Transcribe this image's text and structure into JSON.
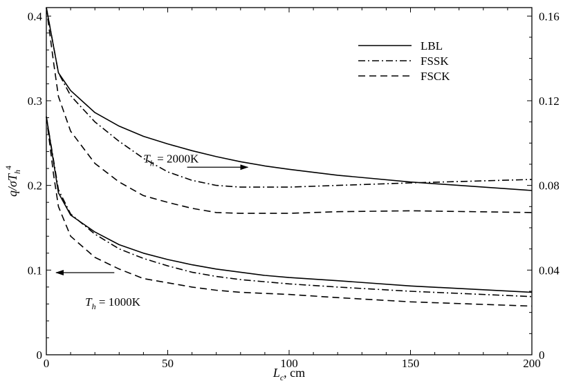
{
  "chart_data": {
    "type": "line",
    "xlabel": {
      "main": "L",
      "sub": "c",
      "unit": ", cm"
    },
    "ylabel_left": {
      "q": "q/σ",
      "T": "T",
      "sub": "h",
      "sup": "4"
    },
    "xlim": [
      0,
      200
    ],
    "ylim_left": [
      0,
      0.41
    ],
    "ylim_right": [
      0,
      0.164
    ],
    "x_ticks": [
      0,
      50,
      100,
      150,
      200
    ],
    "x_tick_labels": [
      "0",
      "50",
      "100",
      "150",
      "200"
    ],
    "y_left_ticks": [
      0,
      0.1,
      0.2,
      0.3,
      0.4
    ],
    "y_left_tick_labels": [
      "0",
      "0.1",
      "0.2",
      "0.3",
      "0.4"
    ],
    "y_right_ticks": [
      0,
      0.04,
      0.08,
      0.12,
      0.16
    ],
    "y_right_tick_labels": [
      "0",
      "0.04",
      "0.08",
      "0.12",
      "0.16"
    ],
    "grid": false,
    "legend_position": "top-right",
    "series": [
      {
        "name": "LBL",
        "style": "solid",
        "axis": "left",
        "group": "T_h = 2000K",
        "x": [
          0,
          5,
          10,
          20,
          30,
          40,
          50,
          60,
          70,
          80,
          90,
          100,
          120,
          150,
          200
        ],
        "values": [
          0.41,
          0.333,
          0.312,
          0.286,
          0.27,
          0.258,
          0.249,
          0.241,
          0.234,
          0.228,
          0.223,
          0.219,
          0.212,
          0.204,
          0.194
        ]
      },
      {
        "name": "FSSK",
        "style": "dashdot",
        "axis": "left",
        "group": "T_h = 2000K",
        "x": [
          0,
          5,
          10,
          20,
          30,
          40,
          50,
          60,
          70,
          80,
          90,
          100,
          120,
          150,
          200
        ],
        "values": [
          0.41,
          0.333,
          0.306,
          0.275,
          0.252,
          0.232,
          0.216,
          0.206,
          0.2,
          0.198,
          0.198,
          0.198,
          0.2,
          0.203,
          0.207
        ]
      },
      {
        "name": "FSCK",
        "style": "dashed",
        "axis": "left",
        "group": "T_h = 2000K",
        "x": [
          0,
          3,
          5,
          10,
          20,
          30,
          40,
          50,
          60,
          70,
          80,
          100,
          120,
          150,
          200
        ],
        "values": [
          0.41,
          0.345,
          0.305,
          0.264,
          0.226,
          0.204,
          0.188,
          0.18,
          0.173,
          0.168,
          0.167,
          0.167,
          0.169,
          0.17,
          0.168
        ]
      },
      {
        "name": "LBL",
        "style": "solid",
        "axis": "right",
        "group": "T_h = 1000K",
        "x": [
          0,
          5,
          10,
          20,
          30,
          40,
          50,
          60,
          70,
          80,
          90,
          100,
          120,
          150,
          200
        ],
        "values": [
          0.1125,
          0.0765,
          0.066,
          0.058,
          0.052,
          0.048,
          0.045,
          0.0425,
          0.0405,
          0.039,
          0.0375,
          0.0365,
          0.035,
          0.0325,
          0.0295
        ]
      },
      {
        "name": "FSSK",
        "style": "dashdot",
        "axis": "right",
        "group": "T_h = 1000K",
        "x": [
          0,
          5,
          10,
          20,
          30,
          40,
          50,
          60,
          70,
          80,
          90,
          100,
          120,
          150,
          200
        ],
        "values": [
          0.1125,
          0.078,
          0.0665,
          0.057,
          0.05,
          0.0455,
          0.042,
          0.039,
          0.037,
          0.0355,
          0.0345,
          0.0335,
          0.032,
          0.03,
          0.0275
        ]
      },
      {
        "name": "FSCK",
        "style": "dashed",
        "axis": "right",
        "group": "T_h = 1000K",
        "x": [
          0,
          3,
          5,
          10,
          20,
          30,
          40,
          50,
          60,
          70,
          80,
          90,
          100,
          120,
          150,
          200
        ],
        "values": [
          0.1125,
          0.085,
          0.07,
          0.056,
          0.046,
          0.0405,
          0.036,
          0.034,
          0.032,
          0.0305,
          0.0295,
          0.029,
          0.0285,
          0.027,
          0.025,
          0.023
        ]
      }
    ],
    "annotations": [
      {
        "id": "hot",
        "T": "T",
        "sub": "h",
        "text": " = 2000K",
        "x": 40,
        "y": 0.227,
        "arrow": "right",
        "arrow_from": [
          58,
          0.2215
        ],
        "arrow_to": [
          83,
          0.2215
        ]
      },
      {
        "id": "cold",
        "T": "T",
        "sub": "h",
        "text": " = 1000K",
        "x": 16,
        "y": 0.058,
        "arrow": "left",
        "arrow_from": [
          28,
          0.097
        ],
        "arrow_to": [
          4,
          0.097
        ]
      }
    ]
  },
  "colors": {
    "line": "#000000",
    "background": "#ffffff"
  }
}
